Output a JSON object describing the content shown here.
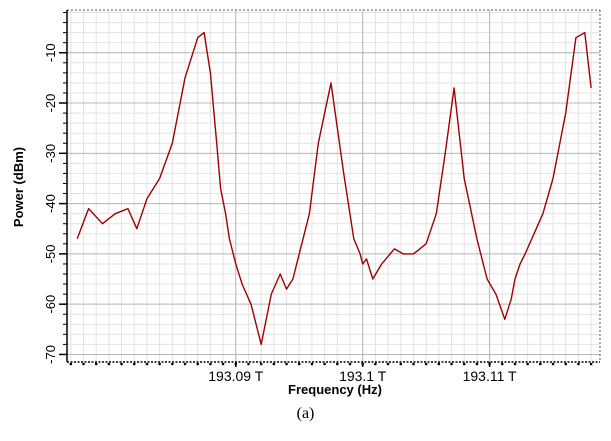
{
  "chart_data": {
    "type": "line",
    "xlabel": "Frequency (Hz)",
    "ylabel": "Power (dBm)",
    "caption": "(a)",
    "xlim": [
      193.0767,
      193.1187
    ],
    "ylim": [
      -71.5,
      -1.5
    ],
    "x_ticks": [
      {
        "value": 193.09,
        "label": "193.09 T"
      },
      {
        "value": 193.1,
        "label": "193.1 T"
      },
      {
        "value": 193.11,
        "label": "193.11 T"
      }
    ],
    "y_ticks": [
      {
        "value": -10,
        "label": "-10"
      },
      {
        "value": -20,
        "label": "-20"
      },
      {
        "value": -30,
        "label": "-30"
      },
      {
        "value": -40,
        "label": "-40"
      },
      {
        "value": -50,
        "label": "-50"
      },
      {
        "value": -60,
        "label": "-60"
      },
      {
        "value": -70,
        "label": "-70"
      }
    ],
    "grid": true,
    "line_color": "#a00000",
    "series": [
      {
        "x": [
          193.0775,
          193.0784,
          193.0795,
          193.0805,
          193.0815,
          193.0822,
          193.083,
          193.084,
          193.085,
          193.086,
          193.087,
          193.0875,
          193.088,
          193.0885,
          193.0888,
          193.0892,
          193.0895,
          193.09,
          193.0905,
          193.0912,
          193.092,
          193.0928,
          193.0935,
          193.094,
          193.0945,
          193.095,
          193.0958,
          193.0965,
          193.0975,
          193.0985,
          193.0993,
          193.0998,
          193.1,
          193.1003,
          193.1008,
          193.1015,
          193.1025,
          193.1032,
          193.104,
          193.105,
          193.1058,
          193.1065,
          193.1072,
          193.108,
          193.109,
          193.1098,
          193.1105,
          193.1112,
          193.1117,
          193.112,
          193.1124,
          193.1128,
          193.1135,
          193.1142,
          193.115,
          193.116,
          193.1168,
          193.1175,
          193.118
        ],
        "y": [
          -47,
          -41,
          -44,
          -42,
          -41,
          -45,
          -39,
          -35,
          -28,
          -15,
          -7,
          -6,
          -14,
          -28,
          -37,
          -42,
          -47,
          -52,
          -56,
          -60,
          -68,
          -58,
          -54,
          -57,
          -55,
          -50,
          -42,
          -28,
          -16,
          -34,
          -47,
          -50,
          -52,
          -51,
          -55,
          -52,
          -49,
          -50,
          -50,
          -48,
          -42,
          -30,
          -17,
          -35,
          -47,
          -55,
          -58,
          -63,
          -59,
          -55,
          -52,
          -50,
          -46,
          -42,
          -35,
          -22,
          -7,
          -6,
          -17
        ]
      }
    ],
    "annotations": []
  }
}
